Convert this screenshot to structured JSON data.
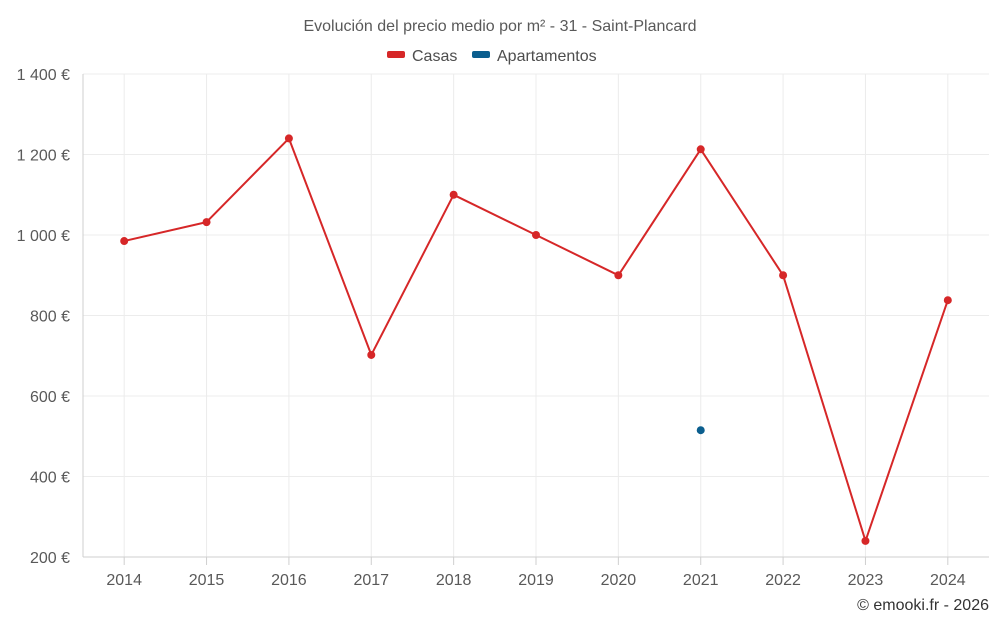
{
  "chart_data": {
    "type": "line",
    "title": "Evolución del precio medio por m² - 31 - Saint-Plancard",
    "categories": [
      "2014",
      "2015",
      "2016",
      "2017",
      "2018",
      "2019",
      "2020",
      "2021",
      "2022",
      "2023",
      "2024"
    ],
    "series": [
      {
        "name": "Casas",
        "color": "#d62728",
        "values": [
          985,
          1032,
          1240,
          702,
          1100,
          1000,
          900,
          1213,
          900,
          240,
          838
        ]
      },
      {
        "name": "Apartamentos",
        "color": "#0b5e8e",
        "values": [
          null,
          null,
          null,
          null,
          null,
          null,
          null,
          515,
          null,
          null,
          null
        ]
      }
    ],
    "ylim": [
      200,
      1400
    ],
    "yticks": [
      200,
      400,
      600,
      800,
      1000,
      1200,
      1400
    ],
    "ytick_labels": [
      "200 €",
      "400 €",
      "600 €",
      "800 €",
      "1 000 €",
      "1 200 €",
      "1 400 €"
    ],
    "xlabel": "",
    "ylabel": "",
    "grid": true,
    "legend_position": "top-center",
    "credit": "© emooki.fr - 2026"
  }
}
